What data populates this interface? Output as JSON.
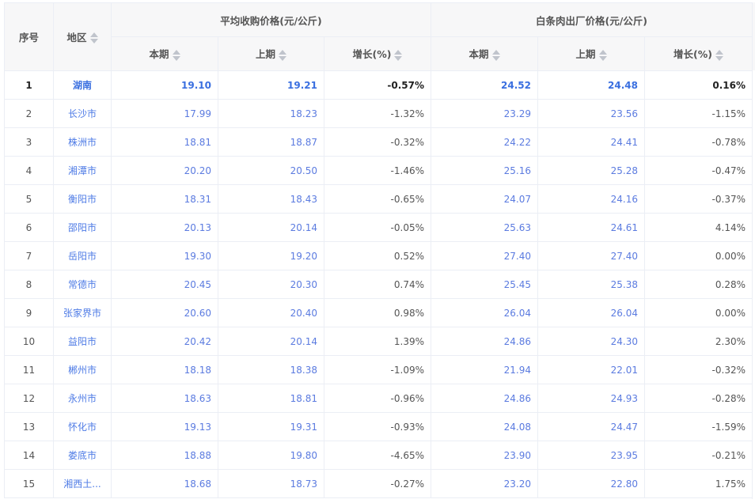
{
  "headers": {
    "index": "序号",
    "region": "地区",
    "group1": "平均收购价格(元/公斤)",
    "group2": "白条肉出厂价格(元/公斤)",
    "current": "本期",
    "previous": "上期",
    "growth": "增长(%)"
  },
  "accent_color": "#4e7be6",
  "rows": [
    {
      "i": "1",
      "region": "湖南",
      "p1": "19.10",
      "p2": "19.21",
      "g1": "-0.57%",
      "w1": "24.52",
      "w2": "24.48",
      "g2": "0.16%"
    },
    {
      "i": "2",
      "region": "长沙市",
      "p1": "17.99",
      "p2": "18.23",
      "g1": "-1.32%",
      "w1": "23.29",
      "w2": "23.56",
      "g2": "-1.15%"
    },
    {
      "i": "3",
      "region": "株洲市",
      "p1": "18.81",
      "p2": "18.87",
      "g1": "-0.32%",
      "w1": "24.22",
      "w2": "24.41",
      "g2": "-0.78%"
    },
    {
      "i": "4",
      "region": "湘潭市",
      "p1": "20.20",
      "p2": "20.50",
      "g1": "-1.46%",
      "w1": "25.16",
      "w2": "25.28",
      "g2": "-0.47%"
    },
    {
      "i": "5",
      "region": "衡阳市",
      "p1": "18.31",
      "p2": "18.43",
      "g1": "-0.65%",
      "w1": "24.07",
      "w2": "24.16",
      "g2": "-0.37%"
    },
    {
      "i": "6",
      "region": "邵阳市",
      "p1": "20.13",
      "p2": "20.14",
      "g1": "-0.05%",
      "w1": "25.63",
      "w2": "24.61",
      "g2": "4.14%"
    },
    {
      "i": "7",
      "region": "岳阳市",
      "p1": "19.30",
      "p2": "19.20",
      "g1": "0.52%",
      "w1": "27.40",
      "w2": "27.40",
      "g2": "0.00%"
    },
    {
      "i": "8",
      "region": "常德市",
      "p1": "20.45",
      "p2": "20.30",
      "g1": "0.74%",
      "w1": "25.45",
      "w2": "25.38",
      "g2": "0.28%"
    },
    {
      "i": "9",
      "region": "张家界市",
      "p1": "20.60",
      "p2": "20.40",
      "g1": "0.98%",
      "w1": "26.04",
      "w2": "26.04",
      "g2": "0.00%"
    },
    {
      "i": "10",
      "region": "益阳市",
      "p1": "20.42",
      "p2": "20.14",
      "g1": "1.39%",
      "w1": "24.86",
      "w2": "24.30",
      "g2": "2.30%"
    },
    {
      "i": "11",
      "region": "郴州市",
      "p1": "18.18",
      "p2": "18.38",
      "g1": "-1.09%",
      "w1": "21.94",
      "w2": "22.01",
      "g2": "-0.32%"
    },
    {
      "i": "12",
      "region": "永州市",
      "p1": "18.63",
      "p2": "18.81",
      "g1": "-0.96%",
      "w1": "24.86",
      "w2": "24.93",
      "g2": "-0.28%"
    },
    {
      "i": "13",
      "region": "怀化市",
      "p1": "19.13",
      "p2": "19.31",
      "g1": "-0.93%",
      "w1": "24.08",
      "w2": "24.47",
      "g2": "-1.59%"
    },
    {
      "i": "14",
      "region": "娄底市",
      "p1": "18.88",
      "p2": "19.80",
      "g1": "-4.65%",
      "w1": "23.90",
      "w2": "23.95",
      "g2": "-0.21%"
    },
    {
      "i": "15",
      "region": "湘西土...",
      "p1": "18.68",
      "p2": "18.73",
      "g1": "-0.27%",
      "w1": "23.20",
      "w2": "22.80",
      "g2": "1.75%"
    }
  ]
}
